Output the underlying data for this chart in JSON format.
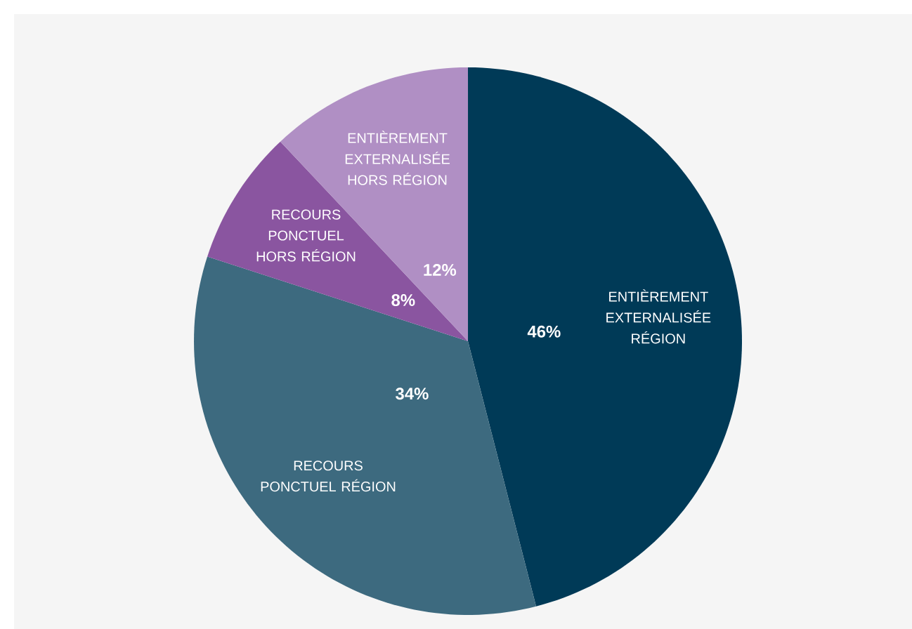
{
  "chart_data": {
    "type": "pie",
    "categories": [
      "ENTIÈREMENT EXTERNALISÉE RÉGION",
      "RECOURS PONCTUEL RÉGION",
      "RECOURS PONCTUEL HORS RÉGION",
      "ENTIÈREMENT EXTERNALISÉE HORS RÉGION"
    ],
    "values": [
      46,
      34,
      8,
      12
    ],
    "colors": [
      "#003a57",
      "#3d6a7f",
      "#8a55a0",
      "#b08fc4"
    ],
    "value_labels": [
      "46%",
      "34%",
      "8%",
      "12%"
    ]
  }
}
